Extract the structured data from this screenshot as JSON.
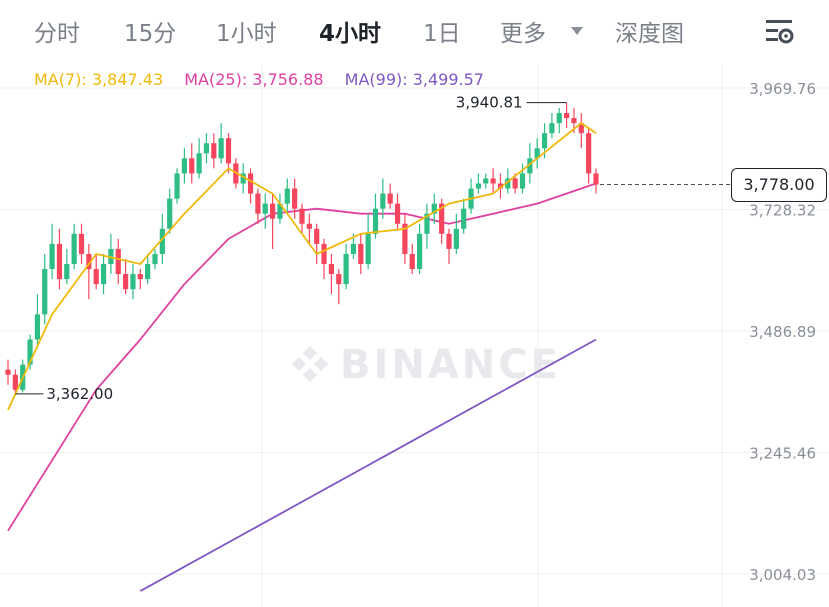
{
  "tabs": [
    {
      "label": "分时",
      "active": false
    },
    {
      "label": "15分",
      "active": false
    },
    {
      "label": "1小时",
      "active": false
    },
    {
      "label": "4小时",
      "active": true
    },
    {
      "label": "1日",
      "active": false
    },
    {
      "label": "更多",
      "active": false
    },
    {
      "label": "深度图",
      "active": false
    }
  ],
  "icons": {
    "more_caret": "caret-down-icon",
    "settings": "chart-settings-icon",
    "watermark_logo": "binance-logo-icon"
  },
  "watermark": "BINANCE",
  "colors": {
    "up": "#2ebd85",
    "down": "#f6465d",
    "ma7": "#f0b90b",
    "ma25": "#e040a0",
    "ma99": "#7e57c2"
  },
  "ma_labels": {
    "ma7": "MA(7): 3,847.43",
    "ma25": "MA(25): 3,756.88",
    "ma99": "MA(99): 3,499.57"
  },
  "current_price": "3,778.00",
  "chart_data": {
    "type": "candlestick",
    "y_axis_ticks": [
      "3,969.76",
      "3,728.32",
      "3,486.89",
      "3,245.46",
      "3,004.03"
    ],
    "y_axis_values": [
      3969.76,
      3728.32,
      3486.89,
      3245.46,
      3004.03
    ],
    "ylim": [
      2970,
      4000
    ],
    "annotations": {
      "high": "3,940.81",
      "low": "3,362.00"
    },
    "high_value": 3940.81,
    "low_value": 3362.0,
    "current_value": 3778.0,
    "candles": [
      [
        3410,
        3400,
        3430,
        3380
      ],
      [
        3400,
        3370,
        3410,
        3362
      ],
      [
        3370,
        3420,
        3430,
        3365
      ],
      [
        3420,
        3470,
        3480,
        3410
      ],
      [
        3470,
        3520,
        3560,
        3460
      ],
      [
        3520,
        3610,
        3640,
        3500
      ],
      [
        3610,
        3660,
        3700,
        3590
      ],
      [
        3660,
        3590,
        3690,
        3570
      ],
      [
        3590,
        3620,
        3650,
        3580
      ],
      [
        3620,
        3680,
        3700,
        3610
      ],
      [
        3680,
        3640,
        3700,
        3620
      ],
      [
        3640,
        3610,
        3660,
        3550
      ],
      [
        3610,
        3580,
        3640,
        3570
      ],
      [
        3580,
        3620,
        3640,
        3560
      ],
      [
        3620,
        3650,
        3680,
        3600
      ],
      [
        3650,
        3600,
        3670,
        3580
      ],
      [
        3600,
        3570,
        3630,
        3560
      ],
      [
        3570,
        3600,
        3620,
        3550
      ],
      [
        3600,
        3590,
        3610,
        3570
      ],
      [
        3590,
        3620,
        3640,
        3580
      ],
      [
        3620,
        3640,
        3650,
        3610
      ],
      [
        3640,
        3690,
        3720,
        3620
      ],
      [
        3690,
        3750,
        3770,
        3680
      ],
      [
        3750,
        3800,
        3810,
        3740
      ],
      [
        3800,
        3830,
        3850,
        3780
      ],
      [
        3830,
        3800,
        3860,
        3780
      ],
      [
        3800,
        3840,
        3870,
        3790
      ],
      [
        3840,
        3860,
        3880,
        3820
      ],
      [
        3860,
        3830,
        3880,
        3810
      ],
      [
        3830,
        3870,
        3900,
        3820
      ],
      [
        3870,
        3820,
        3880,
        3800
      ],
      [
        3820,
        3780,
        3830,
        3770
      ],
      [
        3780,
        3800,
        3820,
        3760
      ],
      [
        3800,
        3760,
        3810,
        3740
      ],
      [
        3760,
        3720,
        3770,
        3700
      ],
      [
        3720,
        3740,
        3760,
        3690
      ],
      [
        3740,
        3710,
        3760,
        3650
      ],
      [
        3710,
        3740,
        3760,
        3700
      ],
      [
        3740,
        3770,
        3790,
        3720
      ],
      [
        3770,
        3730,
        3790,
        3710
      ],
      [
        3730,
        3700,
        3740,
        3680
      ],
      [
        3700,
        3690,
        3720,
        3660
      ],
      [
        3690,
        3660,
        3700,
        3620
      ],
      [
        3660,
        3620,
        3670,
        3590
      ],
      [
        3620,
        3600,
        3640,
        3560
      ],
      [
        3600,
        3580,
        3610,
        3540
      ],
      [
        3580,
        3640,
        3660,
        3570
      ],
      [
        3640,
        3660,
        3680,
        3630
      ],
      [
        3660,
        3620,
        3680,
        3600
      ],
      [
        3620,
        3680,
        3720,
        3610
      ],
      [
        3680,
        3730,
        3760,
        3670
      ],
      [
        3730,
        3760,
        3790,
        3710
      ],
      [
        3760,
        3740,
        3780,
        3730
      ],
      [
        3740,
        3700,
        3760,
        3690
      ],
      [
        3700,
        3640,
        3720,
        3620
      ],
      [
        3640,
        3610,
        3660,
        3600
      ],
      [
        3610,
        3680,
        3700,
        3600
      ],
      [
        3680,
        3720,
        3740,
        3650
      ],
      [
        3720,
        3740,
        3760,
        3700
      ],
      [
        3740,
        3680,
        3750,
        3660
      ],
      [
        3680,
        3650,
        3690,
        3620
      ],
      [
        3650,
        3690,
        3720,
        3640
      ],
      [
        3690,
        3730,
        3750,
        3680
      ],
      [
        3730,
        3770,
        3790,
        3720
      ],
      [
        3770,
        3780,
        3800,
        3760
      ],
      [
        3780,
        3790,
        3800,
        3770
      ],
      [
        3790,
        3780,
        3810,
        3760
      ],
      [
        3780,
        3770,
        3800,
        3750
      ],
      [
        3770,
        3790,
        3810,
        3760
      ],
      [
        3790,
        3770,
        3800,
        3760
      ],
      [
        3770,
        3800,
        3820,
        3760
      ],
      [
        3800,
        3830,
        3860,
        3780
      ],
      [
        3830,
        3850,
        3870,
        3810
      ],
      [
        3850,
        3880,
        3900,
        3830
      ],
      [
        3880,
        3900,
        3920,
        3870
      ],
      [
        3900,
        3920,
        3930,
        3880
      ],
      [
        3920,
        3910,
        3940.81,
        3890
      ],
      [
        3910,
        3900,
        3930,
        3880
      ],
      [
        3900,
        3880,
        3920,
        3850
      ],
      [
        3880,
        3800,
        3890,
        3780
      ],
      [
        3800,
        3778,
        3810,
        3760
      ]
    ],
    "ma7": {
      "x": [
        0,
        6,
        12,
        18,
        24,
        30,
        36,
        42,
        48,
        54,
        60,
        66,
        72,
        78,
        80
      ],
      "y": [
        3330,
        3520,
        3640,
        3620,
        3720,
        3810,
        3760,
        3640,
        3680,
        3690,
        3740,
        3760,
        3830,
        3900,
        3880
      ]
    },
    "ma25": {
      "x": [
        0,
        6,
        12,
        18,
        24,
        30,
        36,
        42,
        48,
        54,
        60,
        66,
        72,
        78,
        80
      ],
      "y": [
        3090,
        3230,
        3370,
        3470,
        3580,
        3670,
        3720,
        3730,
        3720,
        3720,
        3700,
        3720,
        3740,
        3770,
        3780
      ]
    },
    "ma99": {
      "x": [
        18,
        80
      ],
      "y": [
        2970,
        3470
      ]
    }
  }
}
